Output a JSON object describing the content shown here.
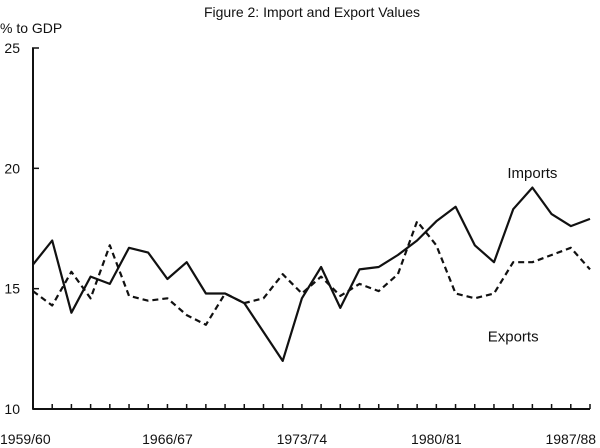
{
  "chart_data": {
    "type": "line",
    "title": "Figure 2: Import and Export Values",
    "ylabel": "% to GDP",
    "xlabel": "",
    "ylim": [
      10,
      25
    ],
    "y_ticks": [
      "10",
      "15",
      "20",
      "25"
    ],
    "x_tick_labels": [
      "1959/60",
      "1966/67",
      "1973/74",
      "1980/81",
      "1987/88"
    ],
    "x": [
      "1959/60",
      "1960/61",
      "1961/62",
      "1962/63",
      "1963/64",
      "1964/65",
      "1965/66",
      "1966/67",
      "1967/68",
      "1968/69",
      "1969/70",
      "1970/71",
      "1971/72",
      "1972/73",
      "1973/74",
      "1974/75",
      "1975/76",
      "1976/77",
      "1977/78",
      "1978/79",
      "1979/80",
      "1980/81",
      "1981/82",
      "1982/83",
      "1983/84",
      "1984/85",
      "1985/86",
      "1986/87",
      "1987/88",
      "1988/89"
    ],
    "series": [
      {
        "name": "Imports",
        "style": "solid",
        "values": [
          16.0,
          17.0,
          14.0,
          15.5,
          15.2,
          16.7,
          16.5,
          15.4,
          16.1,
          14.8,
          14.8,
          14.4,
          13.2,
          12.0,
          14.6,
          15.9,
          14.2,
          15.8,
          15.9,
          16.4,
          17.0,
          17.8,
          18.4,
          16.8,
          16.1,
          18.3,
          19.2,
          18.1,
          17.6,
          17.9
        ]
      },
      {
        "name": "Exports",
        "style": "dashed",
        "values": [
          14.9,
          14.3,
          15.7,
          14.6,
          16.8,
          14.7,
          14.5,
          14.6,
          13.9,
          13.5,
          14.8,
          14.4,
          14.6,
          15.6,
          14.8,
          15.5,
          14.7,
          15.2,
          14.9,
          15.6,
          17.8,
          16.8,
          14.8,
          14.6,
          14.8,
          16.1,
          16.1,
          16.4,
          16.7,
          15.8
        ]
      }
    ],
    "annotations": [
      {
        "text": "Imports",
        "x": "1985/86",
        "y": 19.6
      },
      {
        "text": "Exports",
        "x": "1984/85",
        "y": 12.8
      }
    ],
    "grid": false,
    "legend": "none"
  }
}
